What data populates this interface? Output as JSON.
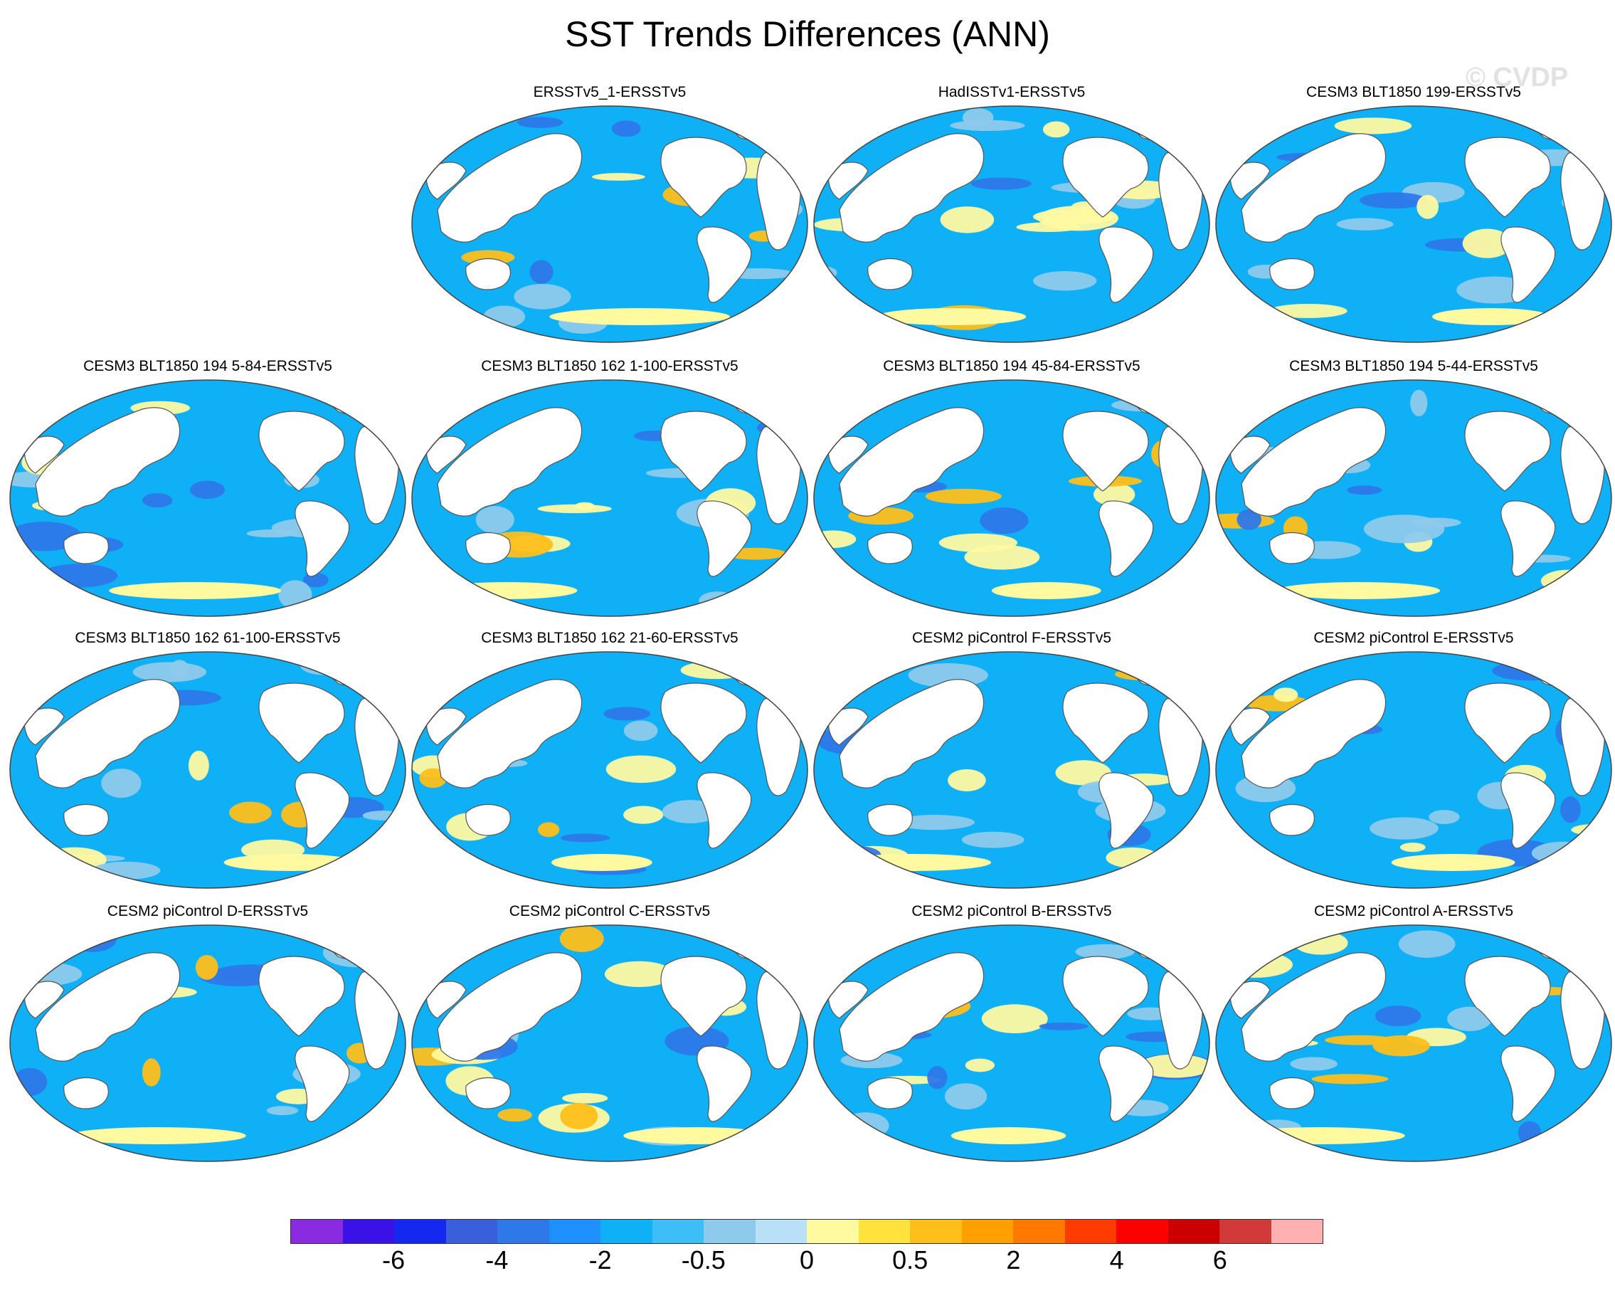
{
  "title": "SST Trends Differences (ANN)",
  "watermark": "© CVDP",
  "panels": [
    {
      "title": "ERSSTv5_1-ERSSTv5",
      "row": 0,
      "col": 1
    },
    {
      "title": "HadISSTv1-ERSSTv5",
      "row": 0,
      "col": 2
    },
    {
      "title": "CESM3 BLT1850 199-ERSSTv5",
      "row": 0,
      "col": 3
    },
    {
      "title": "CESM3 BLT1850 194 5-84-ERSSTv5",
      "row": 1,
      "col": 0
    },
    {
      "title": "CESM3 BLT1850 162 1-100-ERSSTv5",
      "row": 1,
      "col": 1
    },
    {
      "title": "CESM3 BLT1850 194 45-84-ERSSTv5",
      "row": 1,
      "col": 2
    },
    {
      "title": "CESM3 BLT1850 194 5-44-ERSSTv5",
      "row": 1,
      "col": 3
    },
    {
      "title": "CESM3 BLT1850 162 61-100-ERSSTv5",
      "row": 2,
      "col": 0
    },
    {
      "title": "CESM3 BLT1850 162 21-60-ERSSTv5",
      "row": 2,
      "col": 1
    },
    {
      "title": "CESM2 piControl F-ERSSTv5",
      "row": 2,
      "col": 2
    },
    {
      "title": "CESM2 piControl E-ERSSTv5",
      "row": 2,
      "col": 3
    },
    {
      "title": "CESM2 piControl D-ERSSTv5",
      "row": 3,
      "col": 0
    },
    {
      "title": "CESM2 piControl C-ERSSTv5",
      "row": 3,
      "col": 1
    },
    {
      "title": "CESM2 piControl B-ERSSTv5",
      "row": 3,
      "col": 2
    },
    {
      "title": "CESM2 piControl A-ERSSTv5",
      "row": 3,
      "col": 3
    }
  ],
  "colorbar": {
    "colors": [
      "#8a2be2",
      "#3a12e8",
      "#1428f0",
      "#3a5fdc",
      "#2e78ea",
      "#1e90ff",
      "#0fb0f5",
      "#3cbef8",
      "#8ecaec",
      "#b8e0f6",
      "#fff9a0",
      "#ffe23c",
      "#ffbf1a",
      "#ff9f00",
      "#ff7800",
      "#ff3c00",
      "#ff0000",
      "#cc0000",
      "#d23a3a",
      "#ffb0b0"
    ],
    "labels": [
      {
        "text": "-6",
        "index": 2
      },
      {
        "text": "-4",
        "index": 4
      },
      {
        "text": "-2",
        "index": 6
      },
      {
        "text": "-0.5",
        "index": 8
      },
      {
        "text": "0",
        "index": 10
      },
      {
        "text": "0.5",
        "index": 12
      },
      {
        "text": "2",
        "index": 14
      },
      {
        "text": "4",
        "index": 16
      },
      {
        "text": "6",
        "index": 18
      }
    ]
  },
  "map_colors": {
    "ocean": "#0fb0f5",
    "ocean_light": "#8ecaec",
    "ocean_dark": "#2e78ea",
    "warm": "#fff9a0",
    "warmer": "#ffbf1a",
    "land": "#ffffff",
    "coast": "#555555"
  }
}
